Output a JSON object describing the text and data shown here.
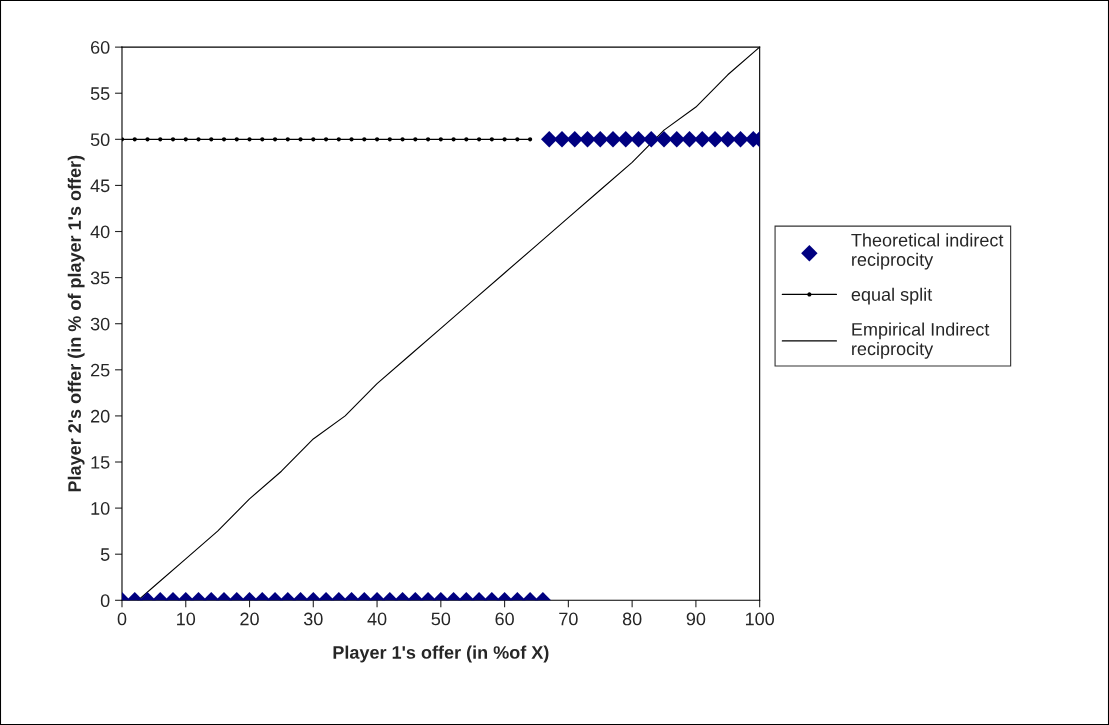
{
  "chart_data": {
    "type": "scatter",
    "xlabel": "Player 1's offer (in %of X)",
    "ylabel": "Player 2's offer (in % of player 1's offer)",
    "xlim": [
      0,
      100
    ],
    "xticks": [
      0,
      10,
      20,
      30,
      40,
      50,
      60,
      70,
      80,
      90,
      100
    ],
    "ylim": [
      0,
      60
    ],
    "yticks": [
      0,
      5,
      10,
      15,
      20,
      25,
      30,
      35,
      40,
      45,
      50,
      55,
      60
    ],
    "grid": false,
    "legend": "right",
    "series": [
      {
        "name": "Theoretical indirect reciprocity",
        "marker": "diamond",
        "color": "#000080",
        "x": [
          0,
          2,
          4,
          6,
          8,
          10,
          12,
          14,
          16,
          18,
          20,
          22,
          24,
          26,
          28,
          30,
          32,
          34,
          36,
          38,
          40,
          42,
          44,
          46,
          48,
          50,
          52,
          54,
          56,
          58,
          60,
          62,
          64,
          66,
          67,
          69,
          71,
          73,
          75,
          77,
          79,
          81,
          83,
          85,
          87,
          89,
          91,
          93,
          95,
          97,
          99,
          100
        ],
        "values": [
          0,
          0,
          0,
          0,
          0,
          0,
          0,
          0,
          0,
          0,
          0,
          0,
          0,
          0,
          0,
          0,
          0,
          0,
          0,
          0,
          0,
          0,
          0,
          0,
          0,
          0,
          0,
          0,
          0,
          0,
          0,
          0,
          0,
          0,
          50,
          50,
          50,
          50,
          50,
          50,
          50,
          50,
          50,
          50,
          50,
          50,
          50,
          50,
          50,
          50,
          50,
          50
        ]
      },
      {
        "name": "equal split",
        "type": "line",
        "marker": "circle",
        "line_style": "solid",
        "color": "#000000",
        "x": [
          0,
          2,
          4,
          6,
          8,
          10,
          12,
          14,
          16,
          18,
          20,
          22,
          24,
          26,
          28,
          30,
          32,
          34,
          36,
          38,
          40,
          42,
          44,
          46,
          48,
          50,
          52,
          54,
          56,
          58,
          60,
          62,
          64
        ],
        "values": [
          50,
          50,
          50,
          50,
          50,
          50,
          50,
          50,
          50,
          50,
          50,
          50,
          50,
          50,
          50,
          50,
          50,
          50,
          50,
          50,
          50,
          50,
          50,
          50,
          50,
          50,
          50,
          50,
          50,
          50,
          50,
          50,
          50
        ]
      },
      {
        "name": "Empirical Indirect reciprocity",
        "type": "line",
        "marker": "none",
        "line_style": "solid",
        "color": "#000000",
        "x": [
          2.5,
          5,
          10,
          15,
          20,
          25,
          30,
          35,
          40,
          45,
          50,
          55,
          60,
          65,
          70,
          75,
          80,
          85,
          90,
          95,
          100
        ],
        "values": [
          0,
          1.5,
          4.5,
          7.5,
          11,
          14,
          17.5,
          20,
          23.5,
          26.5,
          29.5,
          32.5,
          35.5,
          38.5,
          41.5,
          44.5,
          47.5,
          51,
          53.5,
          57,
          60
        ]
      }
    ]
  }
}
